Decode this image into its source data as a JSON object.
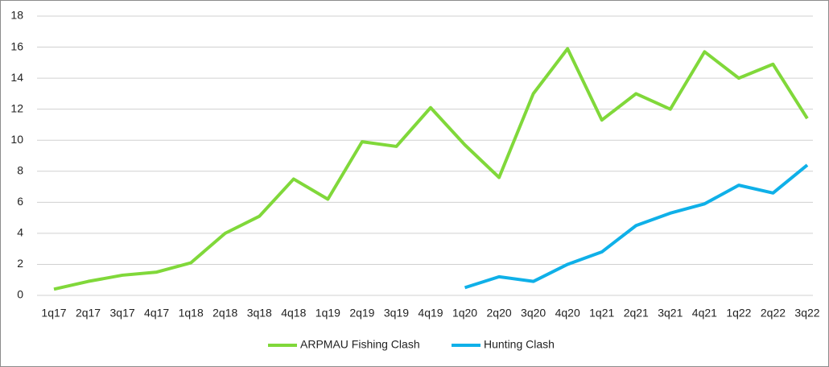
{
  "chart_data": {
    "type": "line",
    "categories": [
      "1q17",
      "2q17",
      "3q17",
      "4q17",
      "1q18",
      "2q18",
      "3q18",
      "4q18",
      "1q19",
      "2q19",
      "3q19",
      "4q19",
      "1q20",
      "2q20",
      "3q20",
      "4q20",
      "1q21",
      "2q21",
      "3q21",
      "4q21",
      "1q22",
      "2q22",
      "3q22"
    ],
    "series": [
      {
        "name": "ARPMAU Fishing Clash",
        "color": "#80d83a",
        "values": [
          0.4,
          0.9,
          1.3,
          1.5,
          2.1,
          4.0,
          5.1,
          7.5,
          6.2,
          9.9,
          9.6,
          12.1,
          9.7,
          7.6,
          13.0,
          15.9,
          11.3,
          13.0,
          12.0,
          15.7,
          14.0,
          14.9,
          11.4
        ]
      },
      {
        "name": "Hunting Clash",
        "color": "#0fb0e8",
        "values": [
          null,
          null,
          null,
          null,
          null,
          null,
          null,
          null,
          null,
          null,
          null,
          null,
          0.5,
          1.2,
          0.9,
          2.0,
          2.8,
          4.5,
          5.3,
          5.9,
          7.1,
          6.6,
          8.4
        ]
      }
    ],
    "ylim": [
      0,
      18
    ],
    "yticks": [
      0,
      2,
      4,
      6,
      8,
      10,
      12,
      14,
      16,
      18
    ],
    "grid": true,
    "legend": "bottom"
  }
}
